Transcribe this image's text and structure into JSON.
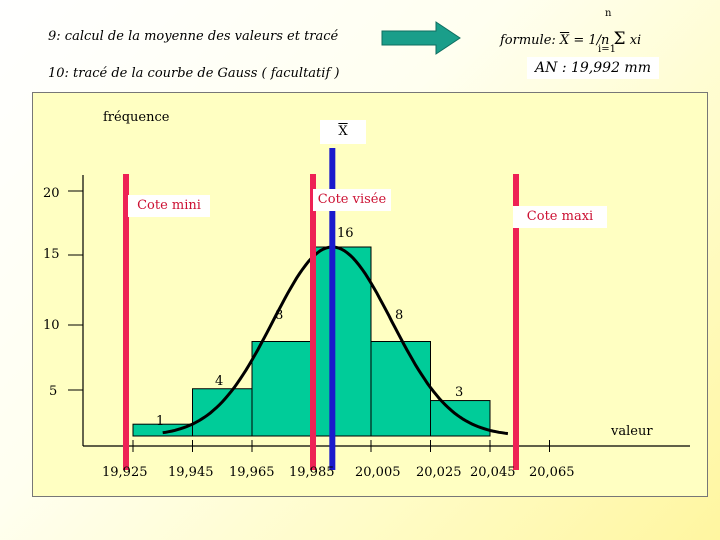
{
  "step9": "9: calcul de la moyenne des valeurs et tracé",
  "step10": "10: tracé de la courbe de Gauss ( facultatif )",
  "formula": {
    "prefix": "formule: ",
    "xbar": "X",
    "mid": " = 1/n ",
    "sigma": "Σ",
    "var": "xi",
    "upper": "n",
    "lower": "i=1"
  },
  "result": "AN : 19,992 mm",
  "colors": {
    "bars": "#00cc99",
    "tol_lines": "#ee2255",
    "mean_line": "#1a1acc",
    "arrow": "#1a9e8a",
    "text_red": "#cc1133"
  },
  "chart_data": {
    "type": "bar",
    "ylabel": "fréquence",
    "xlabel": "valeur",
    "y_ticks": [
      "20",
      "15",
      "10",
      "5"
    ],
    "x_ticks": [
      "19,925",
      "19,945",
      "19,965",
      "19,985",
      "20,005",
      "20,025",
      "20,045",
      "20,065"
    ],
    "bars": [
      {
        "x_from": 19.925,
        "x_to": 19.945,
        "value": 1,
        "label": "1"
      },
      {
        "x_from": 19.945,
        "x_to": 19.965,
        "value": 4,
        "label": "4"
      },
      {
        "x_from": 19.965,
        "x_to": 19.985,
        "value": 8,
        "label": "8"
      },
      {
        "x_from": 19.985,
        "x_to": 20.005,
        "value": 16,
        "label": "16"
      },
      {
        "x_from": 20.005,
        "x_to": 20.025,
        "value": 8,
        "label": "8"
      },
      {
        "x_from": 20.025,
        "x_to": 20.045,
        "value": 3,
        "label": "3"
      }
    ],
    "mean_label": "X",
    "mean_value": 19.992,
    "tolerance_labels": {
      "min": "Cote mini",
      "target": "Cote visée",
      "max": "Cote maxi"
    },
    "gauss_curve": true
  }
}
